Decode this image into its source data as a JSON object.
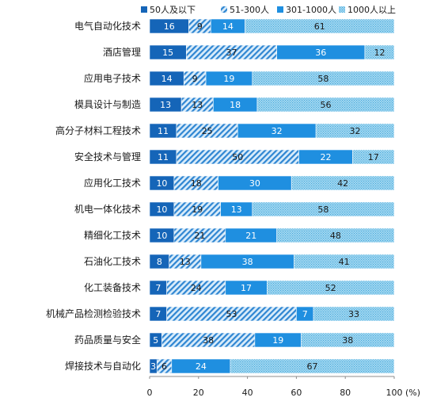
{
  "chart_data": {
    "type": "bar",
    "orientation": "horizontal",
    "stacked": true,
    "title": "",
    "xlabel": "",
    "ylabel": "",
    "x_unit": "(%)",
    "xlim": [
      0,
      100
    ],
    "xticks": [
      0,
      20,
      40,
      60,
      80,
      100
    ],
    "grid": false,
    "legend_position": "top-right",
    "categories": [
      "电气自动化技术",
      "酒店管理",
      "应用电子技术",
      "模具设计与制造",
      "高分子材料工程技术",
      "安全技术与管理",
      "应用化工技术",
      "机电一体化技术",
      "精细化工技术",
      "石油化工技术",
      "化工装备技术",
      "机械产品检测检验技术",
      "药品质量与安全",
      "焊接技术与自动化"
    ],
    "series": [
      {
        "name": "50人及以下",
        "color": "#1565b8",
        "pattern": "solid",
        "values": [
          16,
          15,
          14,
          13,
          11,
          11,
          10,
          10,
          10,
          8,
          7,
          7,
          5,
          3
        ]
      },
      {
        "name": "51-300人",
        "color": "#3a8fd8",
        "pattern": "diagonal-hatch",
        "values": [
          9,
          37,
          9,
          13,
          25,
          50,
          18,
          19,
          21,
          13,
          24,
          53,
          38,
          6
        ]
      },
      {
        "name": "301-1000人",
        "color": "#1f8fe0",
        "pattern": "solid",
        "values": [
          14,
          36,
          19,
          18,
          32,
          22,
          30,
          13,
          21,
          38,
          17,
          7,
          19,
          24
        ]
      },
      {
        "name": "1000人以上",
        "color": "#7cc8ea",
        "pattern": "dotted",
        "values": [
          61,
          12,
          58,
          56,
          32,
          17,
          42,
          58,
          48,
          41,
          52,
          33,
          38,
          67
        ]
      }
    ]
  }
}
